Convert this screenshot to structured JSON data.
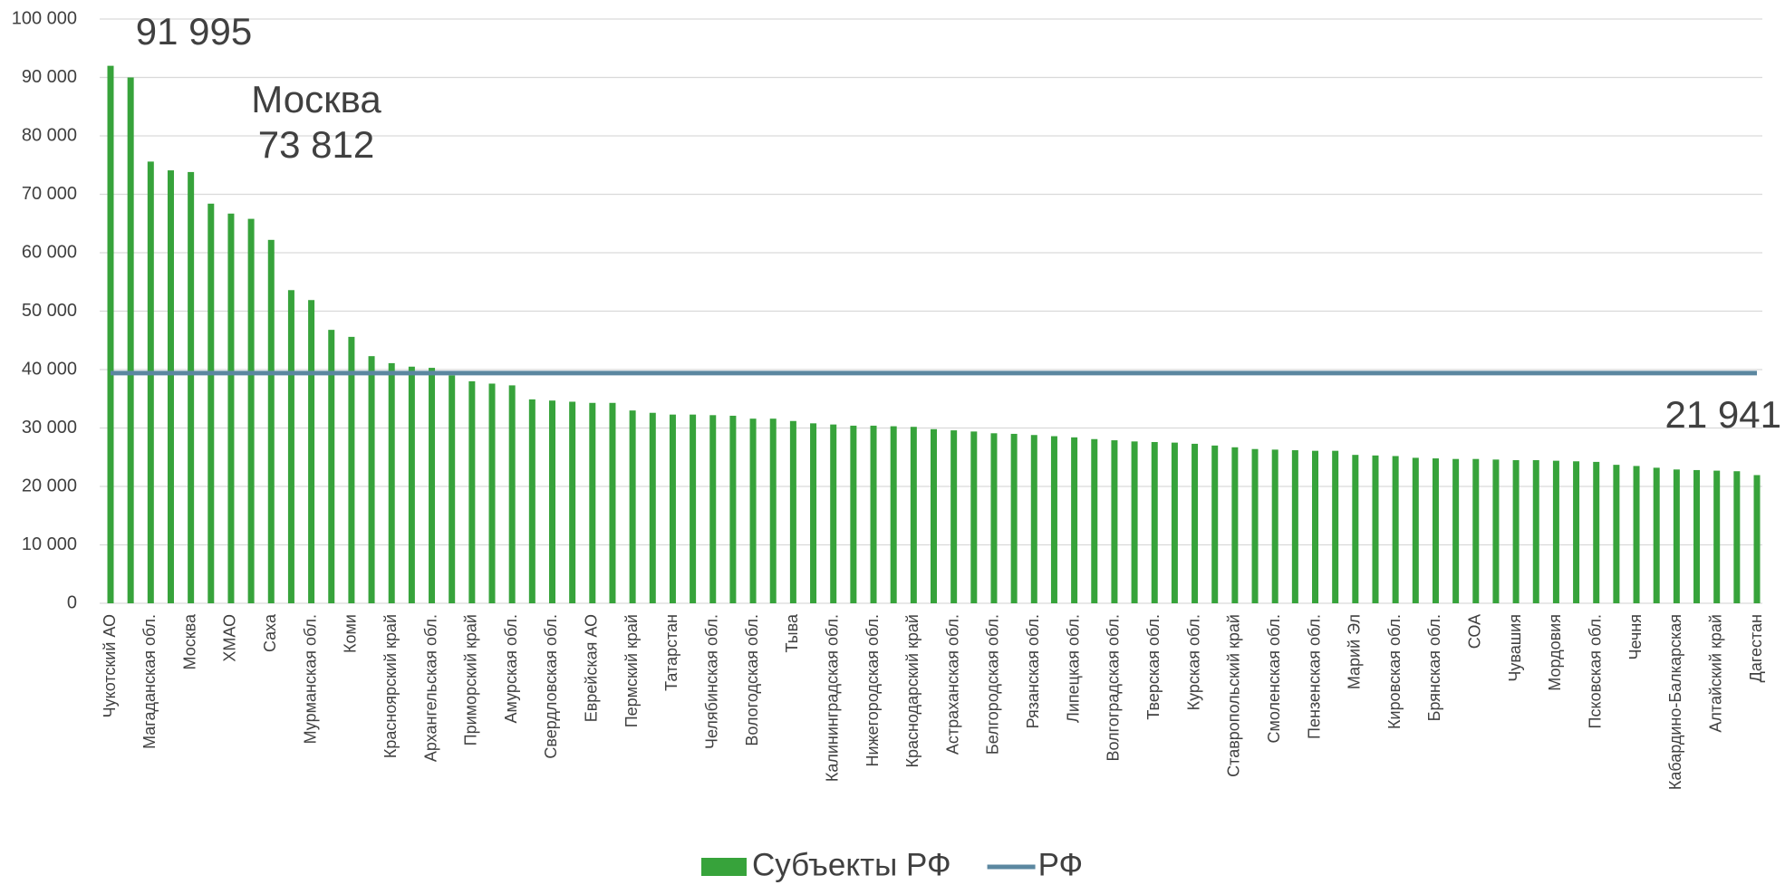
{
  "chart_data": {
    "type": "bar",
    "categories": [
      "Чукотский АО",
      null,
      "Магаданская обл.",
      null,
      "Москва",
      null,
      "ХМАО",
      null,
      "Саха",
      null,
      "Мурманская обл.",
      null,
      "Коми",
      null,
      "Красноярский край",
      null,
      "Архангельская обл.",
      null,
      "Приморский край",
      null,
      "Амурская обл.",
      null,
      "Свердловская обл.",
      null,
      "Еврейская АО",
      null,
      "Пермский край",
      null,
      "Татарстан",
      null,
      "Челябинская обл.",
      null,
      "Вологодская обл.",
      null,
      "Тыва",
      null,
      "Калининградская обл.",
      null,
      "Нижегородская обл.",
      null,
      "Краснодарский край",
      null,
      "Астраханская обл.",
      null,
      "Белгородская обл.",
      null,
      "Рязанская обл.",
      null,
      "Липецкая обл.",
      null,
      "Волгоградская обл.",
      null,
      "Тверская обл.",
      null,
      "Курская обл.",
      null,
      "Ставропольский край",
      null,
      "Смоленская обл.",
      null,
      "Пензенская обл.",
      null,
      "Марий Эл",
      null,
      "Кировская обл.",
      null,
      "Брянская обл.",
      null,
      "СОА",
      null,
      "Чувашия",
      null,
      "Мордовия",
      null,
      "Псковская обл.",
      null,
      "Чечня",
      null,
      "Кабардино-Балкарская",
      null,
      "Алтайский край",
      null,
      "Дагестан"
    ],
    "series": [
      {
        "name": "Субъекты РФ",
        "color": "#37a33b",
        "type": "bar",
        "values": [
          91995,
          90000,
          75600,
          74100,
          73812,
          68400,
          66700,
          65800,
          62200,
          53600,
          51900,
          46800,
          45600,
          42300,
          41100,
          40500,
          40300,
          39000,
          38000,
          37600,
          37300,
          34900,
          34700,
          34500,
          34300,
          34300,
          33000,
          32600,
          32300,
          32300,
          32200,
          32100,
          31600,
          31600,
          31200,
          30800,
          30600,
          30400,
          30400,
          30300,
          30200,
          29800,
          29600,
          29400,
          29100,
          29000,
          28800,
          28600,
          28400,
          28100,
          27900,
          27700,
          27600,
          27500,
          27300,
          27000,
          26700,
          26400,
          26300,
          26200,
          26100,
          26100,
          25400,
          25300,
          25200,
          24900,
          24800,
          24700,
          24700,
          24600,
          24500,
          24500,
          24400,
          24300,
          24200,
          23700,
          23500,
          23200,
          22900,
          22800,
          22700,
          22600,
          21941
        ],
        "value_labels": [
          "91 995",
          null,
          null,
          null,
          "73 812",
          null,
          null,
          null,
          null,
          null,
          null,
          null,
          null,
          null,
          null,
          null,
          null,
          null,
          null,
          null,
          null,
          null,
          null,
          null,
          null,
          null,
          null,
          null,
          null,
          null,
          null,
          null,
          null,
          null,
          null,
          null,
          null,
          null,
          null,
          null,
          null,
          null,
          null,
          null,
          null,
          null,
          null,
          null,
          null,
          null,
          null,
          null,
          null,
          null,
          null,
          null,
          null,
          null,
          null,
          null,
          null,
          null,
          null,
          null,
          null,
          null,
          null,
          null,
          null,
          null,
          null,
          null,
          null,
          null,
          null,
          null,
          null,
          null,
          null,
          null,
          null,
          null,
          "21 941"
        ]
      },
      {
        "name": "РФ",
        "color": "#5b87a0",
        "type": "line",
        "values": [
          39400,
          39400,
          39400,
          39400,
          39400,
          39400,
          39400,
          39400,
          39400,
          39400,
          39400,
          39400,
          39400,
          39400,
          39400,
          39400,
          39400,
          39400,
          39400,
          39400,
          39400,
          39400,
          39400,
          39400,
          39400,
          39400,
          39400,
          39400,
          39400,
          39400,
          39400,
          39400,
          39400,
          39400,
          39400,
          39400,
          39400,
          39400,
          39400,
          39400,
          39400,
          39400,
          39400,
          39400,
          39400,
          39400,
          39400,
          39400,
          39400,
          39400,
          39400,
          39400,
          39400,
          39400,
          39400,
          39400,
          39400,
          39400,
          39400,
          39400,
          39400,
          39400,
          39400,
          39400,
          39400,
          39400,
          39400,
          39400,
          39400,
          39400,
          39400,
          39400,
          39400,
          39400,
          39400,
          39400,
          39400,
          39400,
          39400,
          39400,
          39400,
          39400,
          39400
        ]
      }
    ],
    "annotations": [
      "Москва"
    ],
    "ylim": [
      0,
      100000
    ],
    "yticks": [
      0,
      {
        "value": 10000,
        "label": "10 000"
      },
      {
        "value": 20000,
        "label": "20 000"
      },
      {
        "value": 30000,
        "label": "30 000"
      },
      {
        "value": 40000,
        "label": "40 000"
      },
      {
        "value": 50000,
        "label": "50 000"
      },
      {
        "value": 60000,
        "label": "60 000"
      },
      {
        "value": 70000,
        "label": "70 000"
      },
      {
        "value": 80000,
        "label": "80 000"
      },
      {
        "value": 90000,
        "label": "90 000"
      },
      {
        "value": 100000,
        "label": "100 000"
      }
    ],
    "grid": true,
    "legend": "bottom"
  }
}
